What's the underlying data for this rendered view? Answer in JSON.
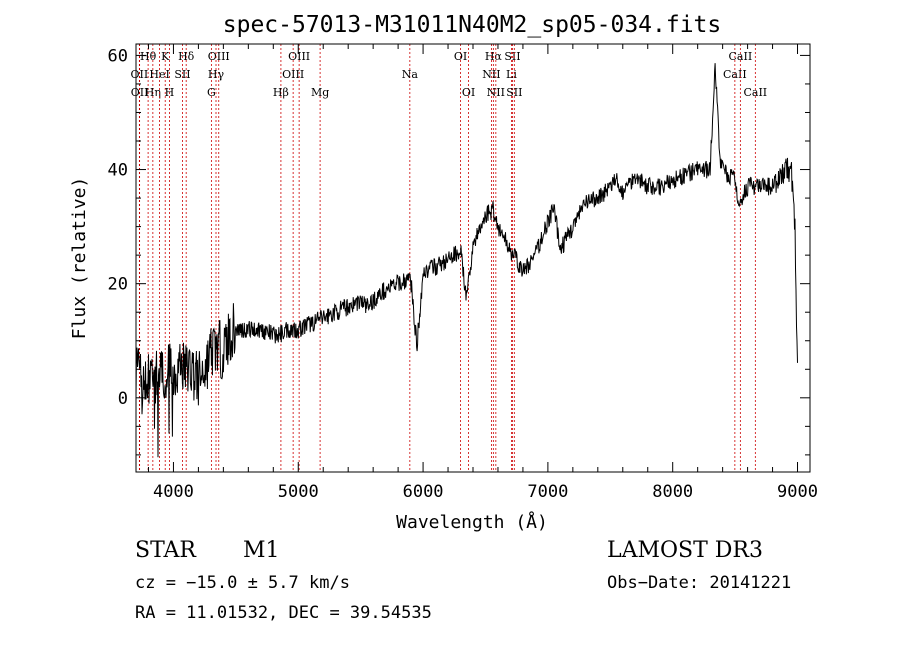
{
  "chart_data": {
    "type": "line",
    "title": "spec-57013-M31011N40M2_sp05-034.fits",
    "xlabel": "Wavelength (Å)",
    "ylabel": "Flux (relative)",
    "xlim": [
      3700,
      9100
    ],
    "ylim": [
      -13,
      62
    ],
    "x_ticks": [
      4000,
      5000,
      6000,
      7000,
      8000,
      9000
    ],
    "y_ticks": [
      0,
      20,
      40,
      60
    ],
    "x_minor_step": 200,
    "y_minor_step": 5,
    "line_color": "#000000",
    "marker_color": "#cc0000",
    "x": [
      3700,
      3750,
      3800,
      3850,
      3900,
      3950,
      4000,
      4050,
      4100,
      4150,
      4200,
      4250,
      4300,
      4350,
      4400,
      4450,
      4500,
      4600,
      4700,
      4800,
      4850,
      4900,
      5000,
      5100,
      5200,
      5300,
      5400,
      5500,
      5550,
      5600,
      5700,
      5800,
      5900,
      5950,
      6000,
      6100,
      6200,
      6300,
      6350,
      6400,
      6450,
      6500,
      6560,
      6600,
      6650,
      6700,
      6750,
      6800,
      6900,
      7000,
      7050,
      7100,
      7200,
      7300,
      7400,
      7500,
      7550,
      7600,
      7700,
      7800,
      7900,
      8000,
      8100,
      8200,
      8300,
      8340,
      8380,
      8400,
      8500,
      8520,
      8600,
      8700,
      8800,
      8850,
      8900,
      8950,
      8980,
      9000
    ],
    "y": [
      5,
      2,
      3,
      4,
      3,
      5,
      4,
      6,
      5,
      5,
      3,
      5,
      8,
      9,
      8,
      11,
      12,
      12,
      12,
      11,
      11,
      12,
      12,
      13,
      14,
      15,
      16,
      17,
      16,
      17,
      19,
      20,
      21,
      9,
      22,
      23,
      24,
      26,
      17,
      27,
      29,
      32,
      33,
      30,
      28,
      26,
      24,
      22,
      25,
      31,
      33,
      26,
      30,
      34,
      35,
      37,
      38,
      36,
      39,
      37,
      37,
      38,
      39,
      40,
      40,
      58,
      42,
      40,
      38,
      34,
      37,
      37,
      37,
      38,
      40,
      40,
      30,
      4
    ],
    "lines": [
      {
        "label": "Hθ",
        "x": 3797,
        "row": 0
      },
      {
        "label": "OII",
        "x": 3727,
        "row": 1
      },
      {
        "label": "OII",
        "x": 3729,
        "row": 2
      },
      {
        "label": "Hη",
        "x": 3835,
        "row": 2
      },
      {
        "label": "HeI",
        "x": 3889,
        "row": 1
      },
      {
        "label": "K",
        "x": 3934,
        "row": 0
      },
      {
        "label": "H",
        "x": 3968,
        "row": 2
      },
      {
        "label": "SII",
        "x": 4072,
        "row": 1
      },
      {
        "label": "Hδ",
        "x": 4102,
        "row": 0
      },
      {
        "label": "G",
        "x": 4304,
        "row": 2
      },
      {
        "label": "OIII",
        "x": 4363,
        "row": 0
      },
      {
        "label": "Hγ",
        "x": 4341,
        "row": 1
      },
      {
        "label": "Hβ",
        "x": 4861,
        "row": 2
      },
      {
        "label": "OIII",
        "x": 4959,
        "row": 1
      },
      {
        "label": "OIII",
        "x": 5007,
        "row": 0
      },
      {
        "label": "Mg",
        "x": 5175,
        "row": 2
      },
      {
        "label": "Na",
        "x": 5894,
        "row": 1
      },
      {
        "label": "OI",
        "x": 6300,
        "row": 0
      },
      {
        "label": "OI",
        "x": 6364,
        "row": 2
      },
      {
        "label": "Hα",
        "x": 6563,
        "row": 0
      },
      {
        "label": "NII",
        "x": 6548,
        "row": 1
      },
      {
        "label": "NII",
        "x": 6583,
        "row": 2
      },
      {
        "label": "SII",
        "x": 6716,
        "row": 0
      },
      {
        "label": "Li",
        "x": 6708,
        "row": 1
      },
      {
        "label": "SII",
        "x": 6731,
        "row": 2
      },
      {
        "label": "CaII",
        "x": 8498,
        "row": 1
      },
      {
        "label": "CaII",
        "x": 8542,
        "row": 0
      },
      {
        "label": "CaII",
        "x": 8662,
        "row": 2
      }
    ]
  },
  "info": {
    "class": "STAR",
    "subclass": "M1",
    "survey": "LAMOST DR3",
    "cz": "cz = −15.0 ± 5.7 km/s",
    "obs_date": "Obs−Date: 20141221",
    "coords": "RA =  11.01532, DEC =  39.54535"
  }
}
